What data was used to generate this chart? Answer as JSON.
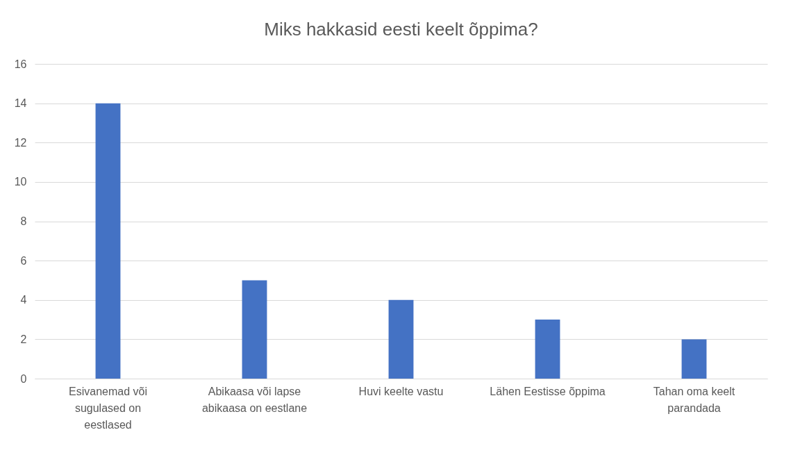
{
  "chart_data": {
    "type": "bar",
    "title": "Miks hakkasid eesti keelt õppima?",
    "categories": [
      "Esivanemad või sugulased on eestlased",
      "Abikaasa või lapse abikaasa on eestlane",
      "Huvi keelte vastu",
      "Lähen Eestisse õppima",
      "Tahan oma keelt parandada"
    ],
    "values": [
      14,
      5,
      4,
      3,
      2
    ],
    "color": "#4472c4",
    "ylim": [
      0,
      16
    ],
    "yticks": [
      0,
      2,
      4,
      6,
      8,
      10,
      12,
      14,
      16
    ],
    "grid": "y"
  }
}
